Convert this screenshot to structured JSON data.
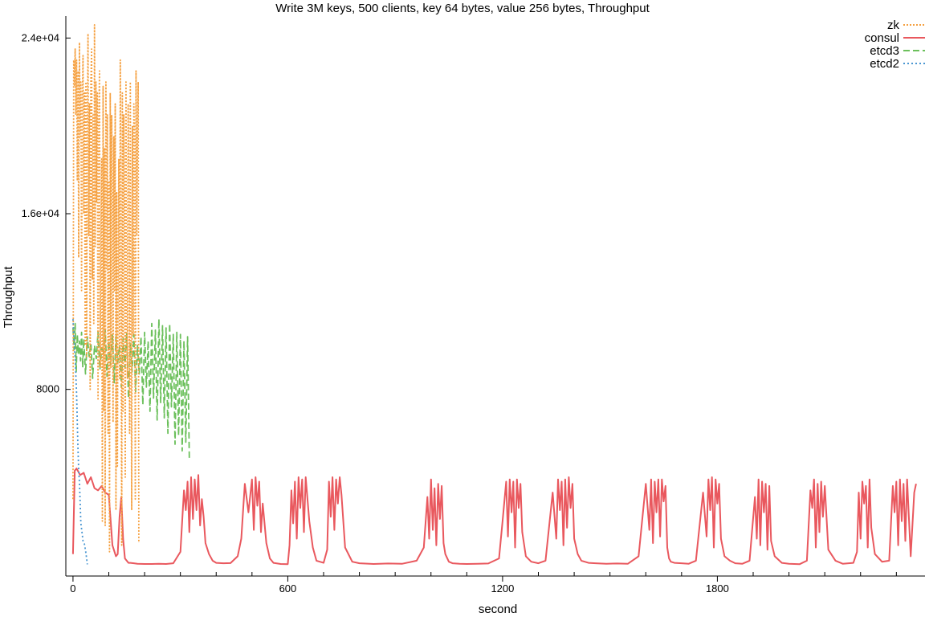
{
  "chart_data": {
    "type": "line",
    "title": "Write 3M keys, 500 clients, key 64 bytes, value 256 bytes, Throughput",
    "xlabel": "second",
    "ylabel": "Throughput",
    "xlim": [
      -20,
      2380
    ],
    "ylim": [
      -500,
      25000
    ],
    "x_ticks": [
      {
        "value": 0,
        "label": "0"
      },
      {
        "value": 600,
        "label": "600"
      },
      {
        "value": 1200,
        "label": "1200"
      },
      {
        "value": 1800,
        "label": "1800"
      }
    ],
    "x_minor_ticks": [
      100,
      200,
      300,
      400,
      500,
      700,
      800,
      900,
      1000,
      1100,
      1300,
      1400,
      1500,
      1600,
      1700,
      1900,
      2000,
      2100,
      2200,
      2300
    ],
    "y_ticks": [
      {
        "value": 8000,
        "label": "8000"
      },
      {
        "value": 16000,
        "label": "1.6e+04"
      },
      {
        "value": 24000,
        "label": "2.4e+04"
      }
    ],
    "legend_position": "top-right",
    "series": [
      {
        "name": "zk",
        "color": "#f5a142",
        "dash": "2,2",
        "x": [
          0,
          2,
          4,
          6,
          8,
          10,
          12,
          14,
          16,
          18,
          20,
          22,
          24,
          26,
          28,
          30,
          32,
          34,
          36,
          38,
          40,
          42,
          44,
          46,
          48,
          50,
          52,
          54,
          56,
          58,
          60,
          62,
          64,
          66,
          68,
          70,
          72,
          74,
          76,
          78,
          80,
          82,
          84,
          86,
          88,
          90,
          92,
          94,
          96,
          98,
          100,
          102,
          104,
          106,
          108,
          110,
          112,
          114,
          116,
          118,
          120,
          122,
          124,
          126,
          128,
          130,
          132,
          134,
          136,
          138,
          140,
          142,
          144,
          146,
          148,
          150,
          152,
          154,
          156,
          158,
          160,
          162,
          164,
          166,
          168,
          170,
          172,
          174,
          176,
          178,
          180,
          182,
          184
        ],
        "values": [
          3000,
          23000,
          21800,
          23500,
          20500,
          23000,
          17500,
          22500,
          14000,
          23800,
          19500,
          22000,
          12500,
          21000,
          23200,
          16000,
          21500,
          10000,
          22000,
          9500,
          20000,
          24200,
          15000,
          21000,
          8000,
          22000,
          23500,
          13000,
          20500,
          11000,
          24600,
          14500,
          22000,
          16500,
          21500,
          7500,
          20000,
          22500,
          9000,
          15000,
          18500,
          2000,
          21800,
          7000,
          19000,
          1800,
          22000,
          13500,
          20500,
          6000,
          17500,
          600,
          21500,
          9000,
          20500,
          16000,
          6500,
          19500,
          12500,
          21000,
          2500,
          17000,
          4500,
          13000,
          18500,
          8500,
          23000,
          14500,
          900,
          21500,
          7000,
          20500,
          15000,
          4000,
          22000,
          11000,
          8500,
          21000,
          17000,
          6000,
          22000,
          12000,
          2500,
          20000,
          10500,
          21000,
          19000,
          3000,
          22500,
          15000,
          19000,
          22000,
          1000
        ]
      },
      {
        "name": "consul",
        "color": "#e9585e",
        "dash": "",
        "x": [
          0,
          5,
          10,
          20,
          30,
          40,
          50,
          60,
          70,
          80,
          90,
          100,
          110,
          120,
          125,
          130,
          135,
          140,
          145,
          150,
          155,
          160,
          170,
          180,
          200,
          220,
          240,
          260,
          280,
          300,
          310,
          315,
          320,
          325,
          330,
          335,
          340,
          345,
          350,
          355,
          360,
          365,
          370,
          380,
          390,
          400,
          420,
          440,
          460,
          470,
          480,
          490,
          500,
          505,
          510,
          515,
          520,
          525,
          530,
          540,
          550,
          560,
          580,
          600,
          605,
          610,
          615,
          620,
          625,
          630,
          635,
          640,
          645,
          650,
          660,
          670,
          680,
          700,
          710,
          715,
          720,
          725,
          730,
          735,
          740,
          745,
          750,
          760,
          780,
          800,
          840,
          880,
          920,
          960,
          980,
          990,
          995,
          1000,
          1005,
          1010,
          1015,
          1020,
          1025,
          1030,
          1035,
          1040,
          1050,
          1060,
          1080,
          1100,
          1130,
          1160,
          1190,
          1200,
          1210,
          1215,
          1220,
          1225,
          1230,
          1235,
          1240,
          1245,
          1250,
          1255,
          1265,
          1280,
          1300,
          1320,
          1340,
          1350,
          1355,
          1360,
          1365,
          1370,
          1375,
          1380,
          1385,
          1390,
          1395,
          1400,
          1410,
          1420,
          1440,
          1460,
          1490,
          1520,
          1550,
          1580,
          1600,
          1610,
          1615,
          1620,
          1625,
          1630,
          1635,
          1640,
          1645,
          1650,
          1655,
          1660,
          1665,
          1670,
          1680,
          1700,
          1720,
          1740,
          1760,
          1770,
          1775,
          1780,
          1785,
          1790,
          1795,
          1800,
          1805,
          1810,
          1820,
          1835,
          1850,
          1870,
          1890,
          1905,
          1910,
          1915,
          1920,
          1925,
          1930,
          1935,
          1940,
          1945,
          1950,
          1960,
          1980,
          2000,
          2030,
          2050,
          2060,
          2065,
          2070,
          2075,
          2080,
          2085,
          2090,
          2095,
          2100,
          2110,
          2130,
          2150,
          2180,
          2190,
          2195,
          2200,
          2205,
          2210,
          2215,
          2220,
          2225,
          2230,
          2240,
          2260,
          2280,
          2290,
          2295,
          2300,
          2305,
          2310,
          2315,
          2320,
          2325,
          2330,
          2340,
          2350,
          2355
        ],
        "values": [
          500,
          4300,
          4400,
          4100,
          4200,
          3700,
          4000,
          3500,
          3400,
          3600,
          3300,
          3200,
          900,
          400,
          500,
          2200,
          3100,
          1200,
          300,
          200,
          100,
          100,
          80,
          60,
          50,
          50,
          60,
          50,
          80,
          600,
          3400,
          2500,
          3800,
          1500,
          4000,
          2100,
          3900,
          2500,
          4100,
          1800,
          3000,
          2200,
          1000,
          500,
          200,
          100,
          80,
          90,
          400,
          1200,
          3700,
          2400,
          3900,
          1600,
          4000,
          2700,
          3800,
          1500,
          2800,
          1000,
          300,
          100,
          50,
          40,
          900,
          3400,
          1900,
          3800,
          1200,
          4000,
          2600,
          3900,
          1500,
          4000,
          2000,
          800,
          200,
          100,
          700,
          3800,
          2200,
          4000,
          1600,
          3900,
          2800,
          4000,
          3200,
          800,
          150,
          80,
          50,
          70,
          60,
          200,
          800,
          3100,
          1200,
          3900,
          1600,
          3500,
          900,
          3700,
          2100,
          3600,
          1000,
          500,
          150,
          80,
          60,
          50,
          60,
          70,
          300,
          2000,
          3800,
          1300,
          3900,
          2400,
          3800,
          800,
          3900,
          2600,
          3700,
          1500,
          400,
          150,
          80,
          200,
          3300,
          1200,
          3900,
          2500,
          3800,
          900,
          3900,
          1700,
          4000,
          2600,
          3700,
          1200,
          500,
          200,
          100,
          80,
          60,
          70,
          60,
          400,
          3700,
          1600,
          3900,
          1000,
          3800,
          2400,
          3900,
          1300,
          3900,
          2900,
          3600,
          800,
          300,
          150,
          100,
          80,
          60,
          200,
          3300,
          1300,
          3900,
          2500,
          4000,
          800,
          3900,
          2800,
          3700,
          1200,
          400,
          200,
          80,
          60,
          200,
          3100,
          1200,
          3900,
          900,
          3800,
          2400,
          3700,
          700,
          3600,
          1100,
          400,
          100,
          60,
          40,
          200,
          3400,
          2600,
          3900,
          800,
          3700,
          1500,
          3800,
          2200,
          3600,
          700,
          200,
          60,
          100,
          600,
          3300,
          1200,
          3800,
          2800,
          3600,
          800,
          3900,
          1700,
          500,
          150,
          200,
          3600,
          2400,
          3800,
          900,
          3900,
          2000,
          3700,
          1100,
          3900,
          400,
          3300,
          3700
        ]
      },
      {
        "name": "etcd3",
        "color": "#6cc05c",
        "dash": "8,4",
        "x": [
          0,
          3,
          6,
          9,
          12,
          15,
          18,
          21,
          24,
          27,
          30,
          35,
          40,
          45,
          50,
          55,
          60,
          65,
          70,
          75,
          80,
          85,
          90,
          95,
          100,
          105,
          110,
          115,
          120,
          125,
          130,
          135,
          140,
          145,
          150,
          155,
          160,
          165,
          170,
          175,
          180,
          185,
          190,
          195,
          200,
          205,
          210,
          215,
          220,
          225,
          230,
          235,
          240,
          245,
          250,
          255,
          260,
          265,
          270,
          275,
          280,
          285,
          290,
          295,
          300,
          305,
          310,
          315,
          320,
          325
        ],
        "values": [
          10800,
          9800,
          11000,
          8800,
          10500,
          9600,
          10200,
          9300,
          10600,
          9000,
          10300,
          8700,
          10400,
          9500,
          10100,
          8500,
          10000,
          9400,
          10600,
          8900,
          9900,
          9600,
          10700,
          8600,
          10200,
          9100,
          10500,
          8300,
          10400,
          9200,
          10000,
          8100,
          10300,
          9000,
          10600,
          7600,
          10100,
          8800,
          10500,
          7900,
          10000,
          8700,
          10400,
          7300,
          10600,
          8100,
          10200,
          7000,
          11000,
          7600,
          10700,
          6600,
          11200,
          7400,
          10900,
          6700,
          10800,
          6000,
          11000,
          7200,
          10500,
          5500,
          10600,
          5900,
          10500,
          5200,
          10200,
          5600,
          10400,
          4800
        ]
      },
      {
        "name": "etcd2",
        "color": "#4b97d2",
        "dash": "2,3",
        "x": [
          0,
          2,
          4,
          6,
          8,
          10,
          12,
          14,
          16,
          18,
          20,
          22,
          25,
          28,
          32,
          36,
          40
        ],
        "values": [
          11200,
          10500,
          9900,
          9400,
          8600,
          7800,
          6400,
          5200,
          4300,
          3800,
          2900,
          1900,
          1500,
          1100,
          950,
          550,
          30
        ]
      }
    ]
  }
}
